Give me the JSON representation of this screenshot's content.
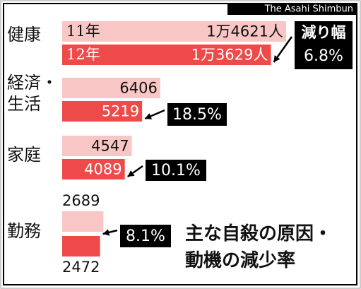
{
  "chart_data": {
    "type": "bar",
    "title": "主な自殺の原因・動機の減少率",
    "credit": "The Asahi Shimbun",
    "categories": [
      "健康",
      "経済・生活",
      "家庭",
      "勤務"
    ],
    "series": [
      {
        "name": "11年",
        "color": "#f9c6c6",
        "values": [
          14621,
          6406,
          4547,
          2689
        ],
        "value_labels": [
          "1万4621人",
          "6406",
          "4547",
          "2689"
        ]
      },
      {
        "name": "12年",
        "color": "#ee4a4a",
        "values": [
          13629,
          5219,
          4089,
          2472
        ],
        "value_labels": [
          "1万3629人",
          "5219",
          "4089",
          "2472"
        ]
      }
    ],
    "reduction_title": "減り幅",
    "reduction_labels": [
      "6.8%",
      "18.5%",
      "10.1%",
      "8.1%"
    ]
  }
}
